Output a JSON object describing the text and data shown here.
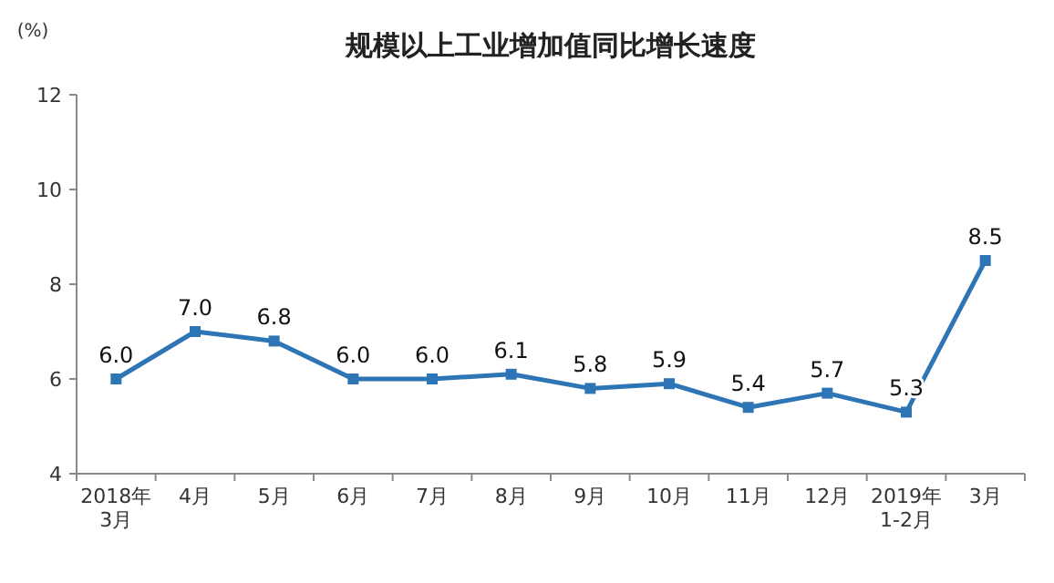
{
  "chart_data": {
    "type": "line",
    "title": "规模以上工业增加值同比增长速度",
    "ylabel": "(%)",
    "categories": [
      "2018年\n3月",
      "4月",
      "5月",
      "6月",
      "7月",
      "8月",
      "9月",
      "10月",
      "11月",
      "12月",
      "2019年\n1-2月",
      "3月"
    ],
    "series": [
      {
        "color": "#2e75b6",
        "values": [
          6.0,
          7.0,
          6.8,
          6.0,
          6.0,
          6.1,
          5.8,
          5.9,
          5.4,
          5.7,
          5.3,
          8.5
        ],
        "value_labels": [
          "6.0",
          "7.0",
          "6.8",
          "6.0",
          "6.0",
          "6.1",
          "5.8",
          "5.9",
          "5.4",
          "5.7",
          "5.3",
          "8.5"
        ]
      }
    ],
    "ylim": [
      4,
      12
    ],
    "yticks": [
      4,
      6,
      8,
      10,
      12
    ],
    "marker": "square",
    "line_style": "solid"
  }
}
